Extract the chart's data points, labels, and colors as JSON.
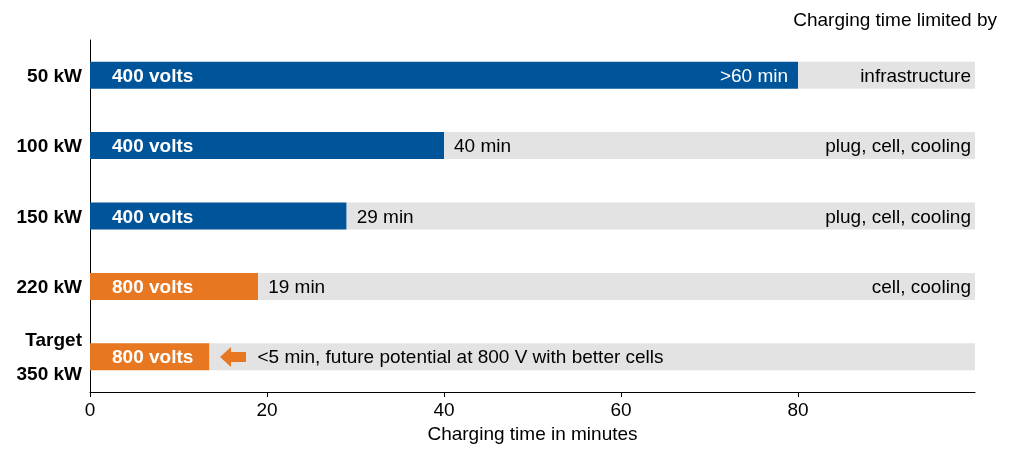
{
  "chart_data": {
    "type": "bar",
    "orientation": "horizontal",
    "stacked": true,
    "xlabel": "Charging time in minutes",
    "categories": [
      "50 kW",
      "100 kW",
      "150 kW",
      "220 kW",
      "Target\n350 kW"
    ],
    "xlim": [
      0,
      100
    ],
    "xticks": [
      0,
      20,
      40,
      60,
      80
    ],
    "series": [
      {
        "colors": [
          "#00559a",
          "#00559a",
          "#00559a",
          "#e87722",
          "#e87722"
        ],
        "values": [
          80,
          40,
          29,
          19,
          13.5
        ],
        "value_labels": [
          ">60 min",
          "40 min",
          "29 min",
          "19 min",
          null
        ]
      },
      {
        "color": "#e3e3e3",
        "values": [
          20,
          60,
          71,
          81,
          86.5
        ]
      }
    ],
    "annotations": [
      "Charging time limited by",
      "400 volts",
      "400 volts",
      "400 volts",
      "800 volts",
      "800 volts",
      "infrastructure",
      "plug, cell, cooling",
      "plug, cell, cooling",
      "cell, cooling",
      "<5 min, future potential at 800 V with better cells"
    ]
  }
}
